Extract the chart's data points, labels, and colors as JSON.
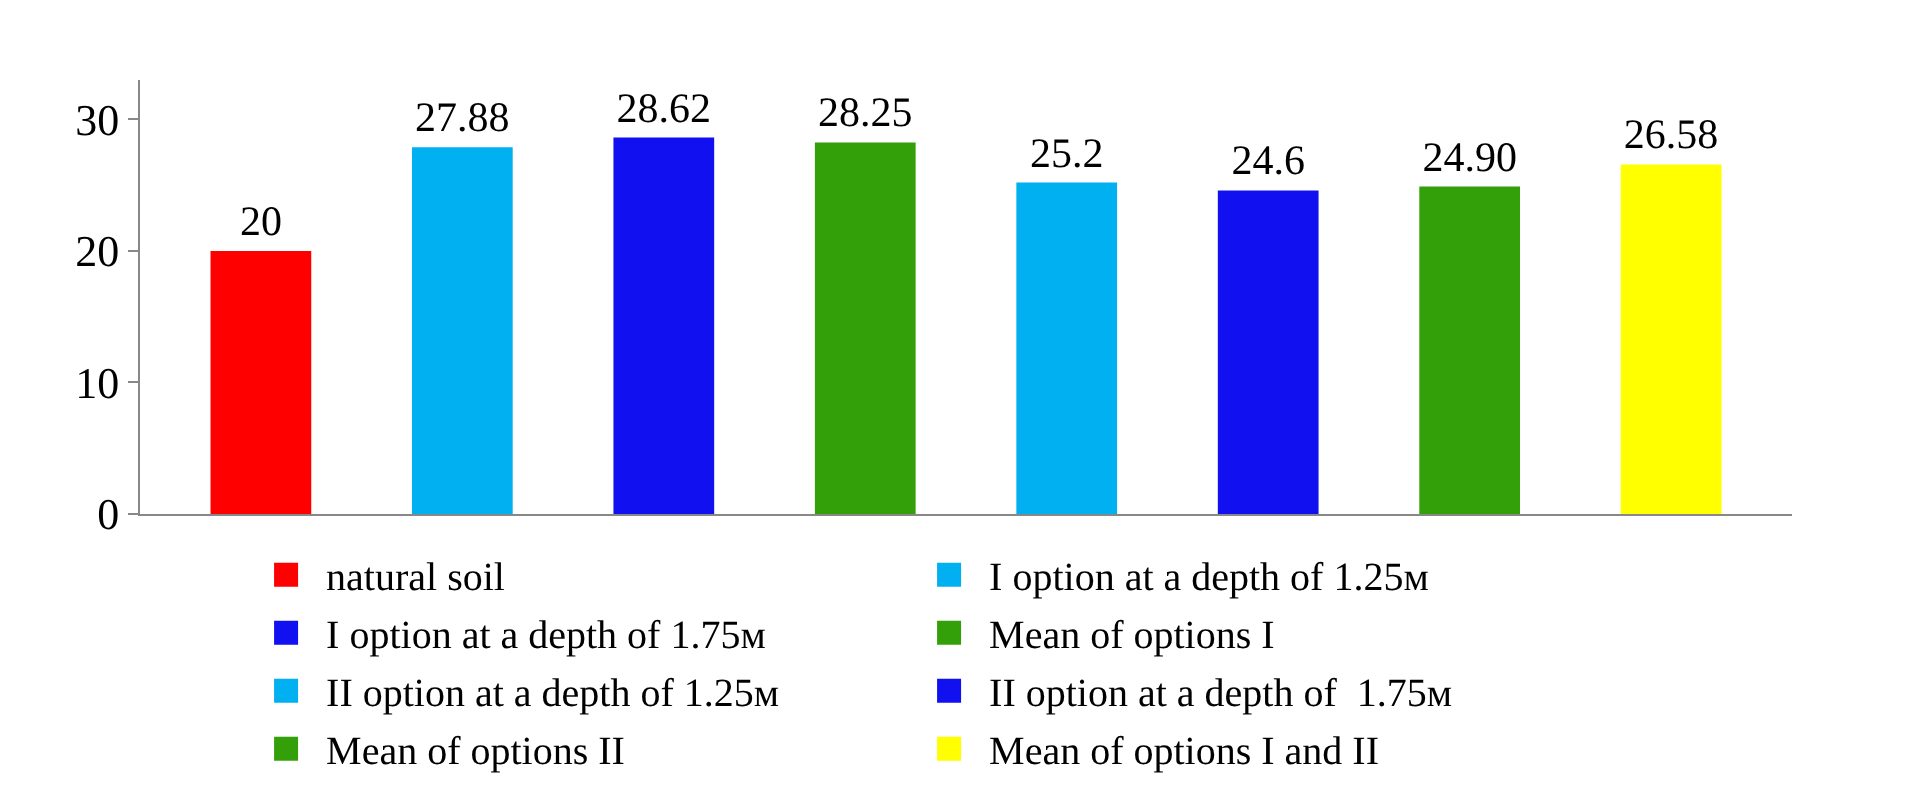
{
  "chart_data": {
    "type": "bar",
    "categories": [
      null,
      null,
      null,
      null,
      null,
      null,
      null,
      null
    ],
    "series": [
      {
        "name": "natural soil",
        "color": "#ff0000",
        "values": [
          20,
          null,
          null,
          null,
          null,
          null,
          null,
          null
        ],
        "value_labels": [
          "20",
          null,
          null,
          null,
          null,
          null,
          null,
          null
        ]
      },
      {
        "name": "I option at a depth of 1.25м",
        "color": "#00b0f0",
        "values": [
          null,
          27.88,
          null,
          null,
          null,
          null,
          null,
          null
        ],
        "value_labels": [
          null,
          "27.88",
          null,
          null,
          null,
          null,
          null,
          null
        ]
      },
      {
        "name": "I option at a depth of 1.75м",
        "color": "#1010f0",
        "values": [
          null,
          null,
          28.62,
          null,
          null,
          null,
          null,
          null
        ],
        "value_labels": [
          null,
          null,
          "28.62",
          null,
          null,
          null,
          null,
          null
        ]
      },
      {
        "name": "Mean of options I",
        "color": "#33a00a",
        "values": [
          null,
          null,
          null,
          28.25,
          null,
          null,
          null,
          null
        ],
        "value_labels": [
          null,
          null,
          null,
          "28.25",
          null,
          null,
          null,
          null
        ]
      },
      {
        "name": "II option at a depth of 1.25м",
        "color": "#00b0f0",
        "values": [
          null,
          null,
          null,
          null,
          25.2,
          null,
          null,
          null
        ],
        "value_labels": [
          null,
          null,
          null,
          null,
          "25.2",
          null,
          null,
          null
        ]
      },
      {
        "name": "II option at a depth of  1.75м",
        "color": "#1010f0",
        "values": [
          null,
          null,
          null,
          null,
          null,
          24.6,
          null,
          null
        ],
        "value_labels": [
          null,
          null,
          null,
          null,
          null,
          "24.6",
          null,
          null
        ]
      },
      {
        "name": "Mean of options II",
        "color": "#33a00a",
        "values": [
          null,
          null,
          null,
          null,
          null,
          null,
          24.9,
          null
        ],
        "value_labels": [
          null,
          null,
          null,
          null,
          null,
          null,
          "24.90",
          null
        ]
      },
      {
        "name": "Mean of options I and II",
        "color": "#ffff00",
        "values": [
          null,
          null,
          null,
          null,
          null,
          null,
          null,
          26.58
        ],
        "value_labels": [
          null,
          null,
          null,
          null,
          null,
          null,
          null,
          "26.58"
        ]
      }
    ],
    "ylim": [
      0,
      33
    ],
    "yticks": [
      0,
      10,
      20,
      30
    ],
    "legend": "bottom"
  }
}
